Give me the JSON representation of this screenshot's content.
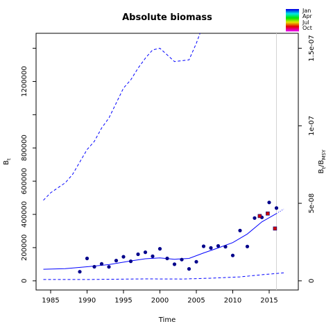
{
  "chart_data": {
    "type": "scatter",
    "title": "Absolute biomass",
    "xlabel": "Time",
    "ylabel": "B",
    "ylabel_sub": "t",
    "ylabel_right": "B",
    "ylabel_right_sub": "t",
    "ylabel_right_slash": "/B",
    "ylabel_right_sub2": "MSY",
    "xlim": [
      1983,
      2019
    ],
    "ylim": [
      -55000,
      1490000
    ],
    "y2_scale": 9333333333333,
    "x_ticks": [
      1985,
      1990,
      1995,
      2000,
      2005,
      2010,
      2015
    ],
    "x_tick_labels": [
      "1985",
      "1990",
      "1995",
      "2000",
      "2005",
      "2010",
      "2015"
    ],
    "y_ticks": [
      0,
      200000,
      400000,
      600000,
      800000,
      1000000,
      1200000,
      1400000
    ],
    "y_tick_labels": [
      "0",
      "200000",
      "400000",
      "600000",
      "800000",
      "",
      "1200000",
      ""
    ],
    "y2_ticks": [
      0,
      5e-08,
      1e-07,
      1.5e-07
    ],
    "y2_tick_labels": [
      "0",
      "5e-08",
      "1e-07",
      "1.5e-07"
    ],
    "vline_x": 2016,
    "colors": {
      "points": "#00008b",
      "recent_points": "#cc0000",
      "fit_line": "#0000ff",
      "ci_line": "#0000ff",
      "vline": "#d3d3d3"
    },
    "points": [
      {
        "x": 1989,
        "y": 55000
      },
      {
        "x": 1990,
        "y": 135000
      },
      {
        "x": 1991,
        "y": 85000
      },
      {
        "x": 1992,
        "y": 102000
      },
      {
        "x": 1993,
        "y": 84000
      },
      {
        "x": 1994,
        "y": 122000
      },
      {
        "x": 1995,
        "y": 145000
      },
      {
        "x": 1996,
        "y": 118000
      },
      {
        "x": 1997,
        "y": 160000
      },
      {
        "x": 1998,
        "y": 172000
      },
      {
        "x": 1999,
        "y": 148000
      },
      {
        "x": 2000,
        "y": 193000
      },
      {
        "x": 2001,
        "y": 135000
      },
      {
        "x": 2002,
        "y": 100000
      },
      {
        "x": 2003,
        "y": 128000
      },
      {
        "x": 2004,
        "y": 72000
      },
      {
        "x": 2005,
        "y": 115000
      },
      {
        "x": 2006,
        "y": 208000
      },
      {
        "x": 2007,
        "y": 198000
      },
      {
        "x": 2008,
        "y": 210000
      },
      {
        "x": 2009,
        "y": 205000
      },
      {
        "x": 2010,
        "y": 153000
      },
      {
        "x": 2011,
        "y": 303000
      },
      {
        "x": 2012,
        "y": 207000
      },
      {
        "x": 2013,
        "y": 378000
      },
      {
        "x": 2014,
        "y": 382000
      },
      {
        "x": 2015,
        "y": 472000
      },
      {
        "x": 2016,
        "y": 438000
      }
    ],
    "recent_points": [
      {
        "x": 2013.7,
        "y": 390000
      },
      {
        "x": 2014.8,
        "y": 405000
      },
      {
        "x": 2015.8,
        "y": 315000
      }
    ],
    "fit": {
      "x": [
        1984,
        1987,
        1990,
        1993,
        1996,
        1998,
        2000,
        2002,
        2004,
        2006,
        2008,
        2010,
        2012,
        2014,
        2016
      ],
      "y": [
        70000,
        73000,
        85000,
        98000,
        120000,
        133000,
        138000,
        130000,
        135000,
        168000,
        198000,
        230000,
        282000,
        355000,
        405000
      ]
    },
    "fit_extension": {
      "x": [
        2016,
        2017
      ],
      "y": [
        405000,
        432000
      ]
    },
    "upper_ci": {
      "x": [
        1984,
        1985,
        1987,
        1988,
        1990,
        1991,
        1992,
        1993,
        1994,
        1995,
        1996,
        1997,
        1998,
        1999,
        2000,
        2001,
        2002,
        2003,
        2004,
        2005,
        2005.5
      ],
      "y": [
        485000,
        530000,
        590000,
        640000,
        790000,
        840000,
        920000,
        980000,
        1070000,
        1160000,
        1210000,
        1280000,
        1340000,
        1390000,
        1400000,
        1360000,
        1320000,
        1325000,
        1330000,
        1430000,
        1490000
      ]
    },
    "lower_ci": {
      "x": [
        1984,
        1990,
        1998,
        2003,
        2007,
        2011,
        2014,
        2017
      ],
      "y": [
        8000,
        8000,
        12000,
        11000,
        16000,
        24000,
        37000,
        48000
      ]
    },
    "legend": {
      "position": "top-right",
      "labels": [
        "Jan",
        "Apr",
        "Jul",
        "Oct"
      ]
    }
  }
}
